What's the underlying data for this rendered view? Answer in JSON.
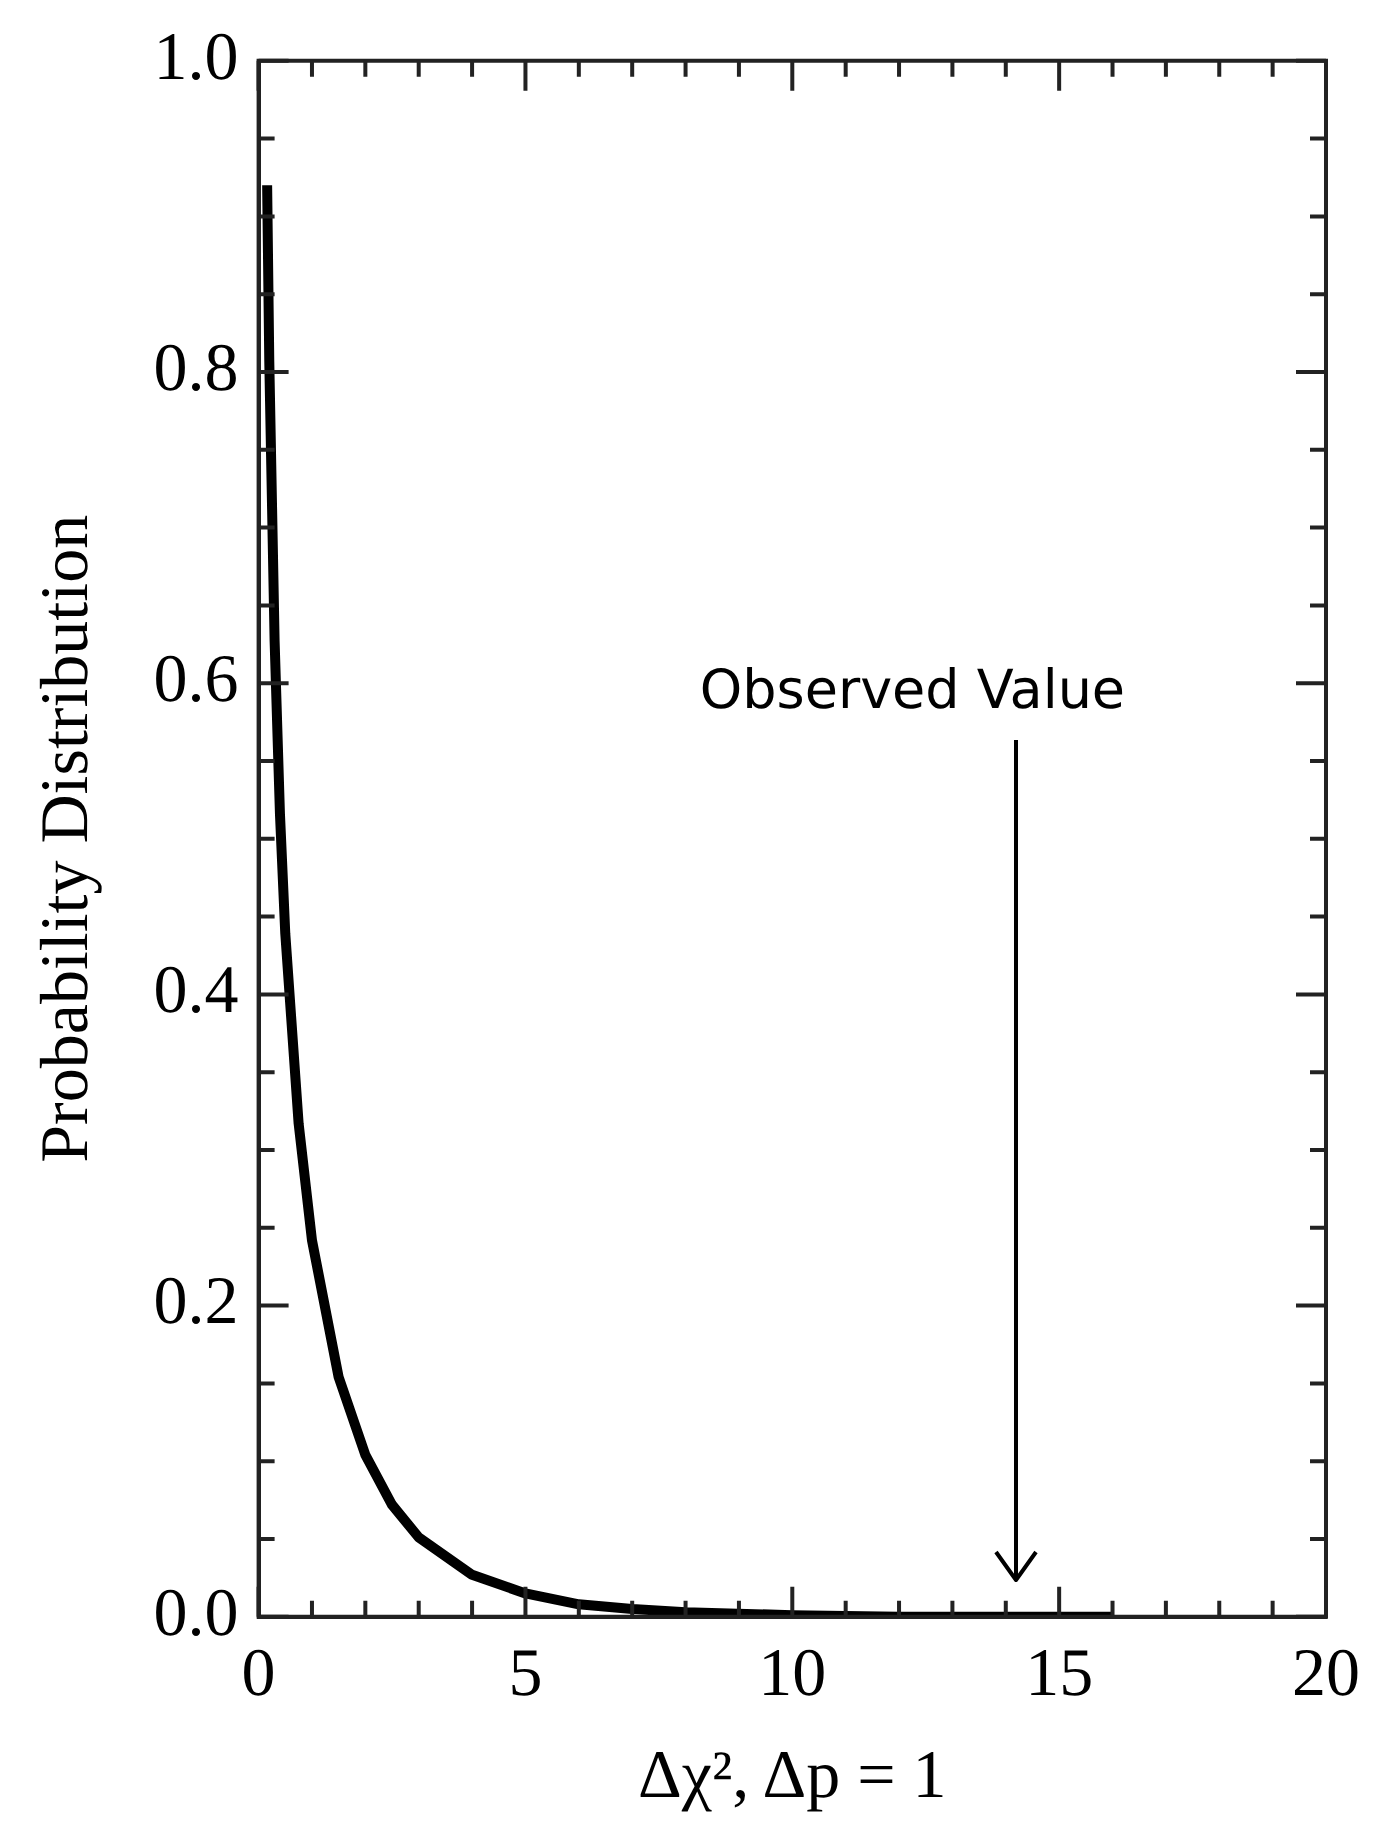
{
  "chart_data": {
    "type": "line",
    "xlabel": "Δχ², Δp = 1",
    "ylabel": "Probability Distribution",
    "series": [
      {
        "color": "#000000",
        "x": [
          0.16,
          0.2,
          0.3,
          0.4,
          0.5,
          0.75,
          1,
          1.5,
          2,
          2.5,
          3,
          4,
          5,
          6,
          7,
          8,
          10,
          12,
          16
        ],
        "values": [
          0.92,
          0.807,
          0.627,
          0.516,
          0.439,
          0.317,
          0.242,
          0.154,
          0.104,
          0.072,
          0.051,
          0.027,
          0.015,
          0.008,
          0.005,
          0.003,
          0.001,
          0,
          0
        ]
      }
    ],
    "xlim": [
      0,
      20
    ],
    "xticks": [
      {
        "value": 0,
        "label": "0"
      },
      {
        "value": 1,
        "label": null
      },
      {
        "value": 2,
        "label": null
      },
      {
        "value": 3,
        "label": null
      },
      {
        "value": 4,
        "label": null
      },
      {
        "value": 5,
        "label": "5"
      },
      {
        "value": 6,
        "label": null
      },
      {
        "value": 7,
        "label": null
      },
      {
        "value": 8,
        "label": null
      },
      {
        "value": 9,
        "label": null
      },
      {
        "value": 10,
        "label": "10"
      },
      {
        "value": 11,
        "label": null
      },
      {
        "value": 12,
        "label": null
      },
      {
        "value": 13,
        "label": null
      },
      {
        "value": 14,
        "label": null
      },
      {
        "value": 15,
        "label": "15"
      },
      {
        "value": 16,
        "label": null
      },
      {
        "value": 17,
        "label": null
      },
      {
        "value": 18,
        "label": null
      },
      {
        "value": 19,
        "label": null
      },
      {
        "value": 20,
        "label": "20"
      }
    ],
    "ylim": [
      0,
      1
    ],
    "yticks": [
      {
        "value": 0,
        "label": "0.0"
      },
      {
        "value": 0.05,
        "label": null
      },
      {
        "value": 0.1,
        "label": null
      },
      {
        "value": 0.15,
        "label": null
      },
      {
        "value": 0.2,
        "label": "0.2"
      },
      {
        "value": 0.25,
        "label": null
      },
      {
        "value": 0.3,
        "label": null
      },
      {
        "value": 0.35,
        "label": null
      },
      {
        "value": 0.4,
        "label": "0.4"
      },
      {
        "value": 0.45,
        "label": null
      },
      {
        "value": 0.5,
        "label": null
      },
      {
        "value": 0.55,
        "label": null
      },
      {
        "value": 0.6,
        "label": "0.6"
      },
      {
        "value": 0.65,
        "label": null
      },
      {
        "value": 0.7,
        "label": null
      },
      {
        "value": 0.75,
        "label": null
      },
      {
        "value": 0.8,
        "label": "0.8"
      },
      {
        "value": 0.85,
        "label": null
      },
      {
        "value": 0.9,
        "label": null
      },
      {
        "value": 0.95,
        "label": null
      },
      {
        "value": 1,
        "label": "1.0"
      }
    ],
    "grid": false,
    "legend": false,
    "marker": "none",
    "line_style": "solid",
    "ref_lines": [
      {
        "axis": "x",
        "value": 14.2,
        "label": "Observed Value",
        "color": "#000000"
      }
    ]
  }
}
